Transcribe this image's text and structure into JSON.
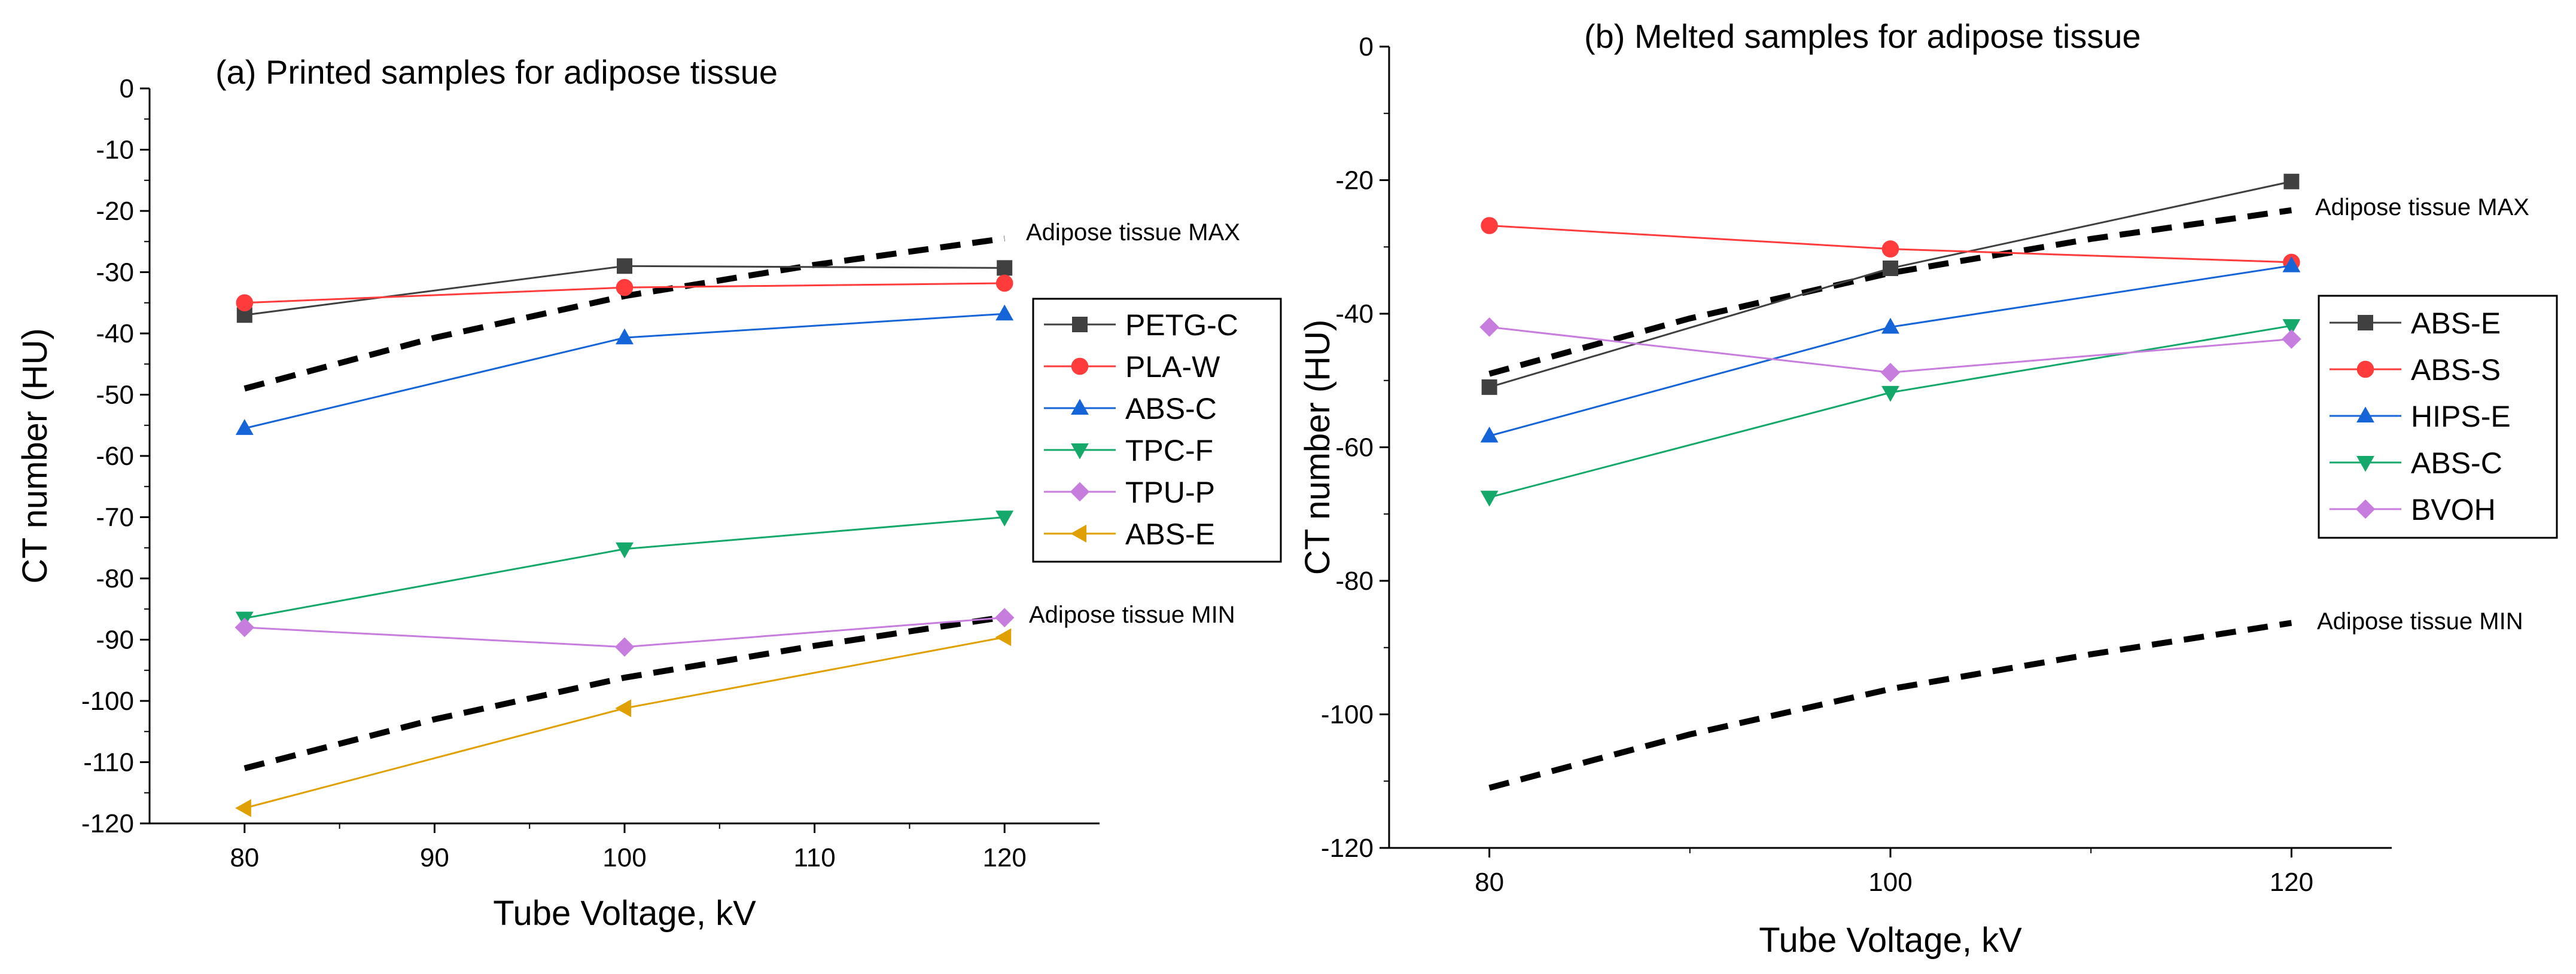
{
  "chart_data": [
    {
      "type": "line",
      "title": "(a) Printed samples for adipose tissue",
      "xlabel": "Tube Voltage, kV",
      "ylabel": "CT number (HU)",
      "xlim": [
        75,
        125
      ],
      "ylim": [
        -120,
        0
      ],
      "xticks": [
        80,
        90,
        100,
        110,
        120
      ],
      "yticks": [
        0,
        -10,
        -20,
        -30,
        -40,
        -50,
        -60,
        -70,
        -80,
        -90,
        -100,
        -110,
        -120
      ],
      "legend_position": "right",
      "series": [
        {
          "name": "PETG-C",
          "marker": "square",
          "color": "#404040",
          "x": [
            80,
            100,
            120
          ],
          "y": [
            -37,
            -29,
            -29.3
          ]
        },
        {
          "name": "PLA-W",
          "marker": "circle",
          "color": "#ff3b3b",
          "x": [
            80,
            100,
            120
          ],
          "y": [
            -35,
            -32.5,
            -31.8
          ]
        },
        {
          "name": "ABS-C",
          "marker": "triangle-up",
          "color": "#1565d8",
          "x": [
            80,
            100,
            120
          ],
          "y": [
            -55.5,
            -40.7,
            -36.8
          ]
        },
        {
          "name": "TPC-F",
          "marker": "triangle-down",
          "color": "#14a86a",
          "x": [
            80,
            100,
            120
          ],
          "y": [
            -86.5,
            -75.2,
            -70
          ]
        },
        {
          "name": "TPU-P",
          "marker": "diamond",
          "color": "#c77dde",
          "x": [
            80,
            100,
            120
          ],
          "y": [
            -88,
            -91.2,
            -86.4
          ]
        },
        {
          "name": "ABS-E",
          "marker": "triangle-left",
          "color": "#e0a000",
          "x": [
            80,
            100,
            120
          ],
          "y": [
            -117.5,
            -101.2,
            -89.6
          ]
        }
      ],
      "bounds": [
        {
          "name": "max",
          "label": "Adipose tissue MAX",
          "x": [
            80,
            90,
            100,
            110,
            120
          ],
          "y": [
            -49,
            -40.7,
            -33.9,
            -28.8,
            -24.5
          ]
        },
        {
          "name": "min",
          "label": "Adipose tissue MIN",
          "x": [
            80,
            90,
            100,
            110,
            120
          ],
          "y": [
            -111,
            -103,
            -96.2,
            -91,
            -86.3
          ]
        }
      ]
    },
    {
      "type": "line",
      "title": "(b) Melted samples for adipose tissue",
      "xlabel": "Tube Voltage, kV",
      "ylabel": "CT number (HU)",
      "xlim": [
        75,
        125
      ],
      "ylim": [
        -120,
        0
      ],
      "xticks": [
        80,
        100,
        120
      ],
      "yticks": [
        0,
        -20,
        -40,
        -60,
        -80,
        -100,
        -120
      ],
      "legend_position": "right",
      "series": [
        {
          "name": "ABS-E",
          "marker": "square",
          "color": "#404040",
          "x": [
            80,
            100,
            120
          ],
          "y": [
            -51,
            -33.2,
            -20.2
          ]
        },
        {
          "name": "ABS-S",
          "marker": "circle",
          "color": "#ff3b3b",
          "x": [
            80,
            100,
            120
          ],
          "y": [
            -26.8,
            -30.3,
            -32.3
          ]
        },
        {
          "name": "HIPS-E",
          "marker": "triangle-up",
          "color": "#1565d8",
          "x": [
            80,
            100,
            120
          ],
          "y": [
            -58.3,
            -42,
            -32.8
          ]
        },
        {
          "name": "ABS-C",
          "marker": "triangle-down",
          "color": "#14a86a",
          "x": [
            80,
            100,
            120
          ],
          "y": [
            -67.5,
            -51.8,
            -41.8
          ]
        },
        {
          "name": "BVOH",
          "marker": "diamond",
          "color": "#c77dde",
          "x": [
            80,
            100,
            120
          ],
          "y": [
            -42,
            -48.8,
            -43.8
          ]
        }
      ],
      "bounds": [
        {
          "name": "max",
          "label": "Adipose tissue MAX",
          "x": [
            80,
            90,
            100,
            110,
            120
          ],
          "y": [
            -49,
            -40.7,
            -33.9,
            -28.8,
            -24.5
          ]
        },
        {
          "name": "min",
          "label": "Adipose tissue MIN",
          "x": [
            80,
            90,
            100,
            110,
            120
          ],
          "y": [
            -111,
            -103,
            -96.2,
            -91,
            -86.3
          ]
        }
      ]
    }
  ]
}
